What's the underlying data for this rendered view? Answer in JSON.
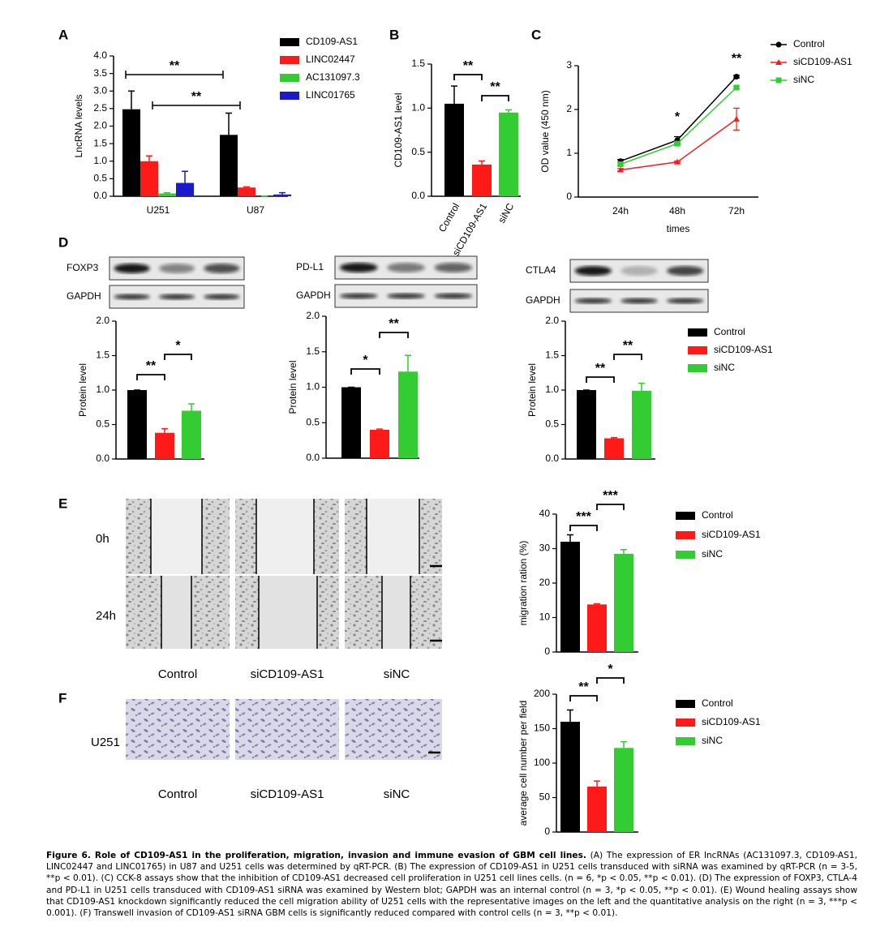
{
  "panels": [
    "A",
    "B",
    "C",
    "D",
    "E",
    "F"
  ],
  "blots": [
    {
      "target": "FOXP3",
      "reference": "GAPDH"
    },
    {
      "target": "PD-L1",
      "reference": "GAPDH"
    },
    {
      "target": "CTLA4",
      "reference": "GAPDH"
    }
  ],
  "images": {
    "E": {
      "rows": [
        "0h",
        "24h"
      ],
      "columns": [
        "Control",
        "siCD109-AS1",
        "siNC"
      ]
    },
    "F": {
      "rows": [
        "U251"
      ],
      "columns": [
        "Control",
        "siCD109-AS1",
        "siNC"
      ]
    }
  },
  "chart_data": [
    {
      "type": "bar",
      "ylabel": "LncRNA levels",
      "categories": [
        "U251",
        "U87"
      ],
      "series": [
        {
          "name": "CD109-AS1",
          "color": "#000000",
          "values": [
            2.48,
            1.75
          ],
          "errors": [
            0.52,
            0.62
          ]
        },
        {
          "name": "LINC02447",
          "color": "#ff1a1a",
          "values": [
            1.0,
            0.25
          ],
          "errors": [
            0.15,
            0.02
          ]
        },
        {
          "name": "AC131097.3",
          "color": "#33cc33",
          "values": [
            0.08,
            0.0
          ],
          "errors": [
            0.02,
            0.0
          ]
        },
        {
          "name": "LINC01765",
          "color": "#1a1acc",
          "values": [
            0.38,
            0.05
          ],
          "errors": [
            0.33,
            0.05
          ]
        }
      ],
      "ylim": [
        0,
        4
      ],
      "yticks": [
        {
          "value": 0,
          "label": "0.0"
        },
        0.5,
        {
          "value": 1,
          "label": "1.0"
        },
        1.5,
        {
          "value": 2,
          "label": "2.0"
        },
        2.5,
        {
          "value": 3,
          "label": "3.0"
        },
        3.5,
        {
          "value": 4,
          "label": "4.0"
        }
      ],
      "annotations": [
        "**",
        "**"
      ]
    },
    {
      "type": "bar",
      "ylabel": "CD109-AS1 level",
      "categories": [
        "Control",
        "siCD109-AS1",
        "siNC"
      ],
      "values": [
        1.05,
        0.36,
        0.95
      ],
      "errors": [
        0.2,
        0.04,
        0.03
      ],
      "colors": [
        "#000000",
        "#ff1a1a",
        "#33cc33"
      ],
      "ylim": [
        0,
        1.5
      ],
      "yticks": [
        {
          "value": 0,
          "label": "0.0"
        },
        0.5,
        {
          "value": 1,
          "label": "1.0"
        },
        1.5
      ],
      "annotations": [
        "**",
        "**"
      ]
    },
    {
      "type": "line",
      "xlabel": "times",
      "ylabel": "OD value (450 nm)",
      "categories": [
        "24h",
        "48h",
        "72h"
      ],
      "series": [
        {
          "name": "Control",
          "color": "#000000",
          "marker": "circle",
          "values": [
            0.82,
            1.3,
            2.75
          ],
          "errors": [
            0.04,
            0.08,
            0.03
          ]
        },
        {
          "name": "siCD109-AS1",
          "color": "#ff1a1a",
          "marker": "triangle",
          "values": [
            0.62,
            0.8,
            1.78
          ],
          "errors": [
            0.03,
            0.02,
            0.25
          ]
        },
        {
          "name": "siNC",
          "color": "#33cc33",
          "marker": "square",
          "values": [
            0.75,
            1.22,
            2.5
          ],
          "errors": [
            0.03,
            0.04,
            0.03
          ]
        }
      ],
      "ylim": [
        0,
        3
      ],
      "yticks": [
        0,
        1,
        2,
        3
      ],
      "annotations": [
        "*",
        "**"
      ]
    },
    {
      "type": "bar",
      "ylabel": "Protein level",
      "values": [
        1.0,
        0.38,
        0.7
      ],
      "errors": [
        0.0,
        0.06,
        0.1
      ],
      "colors": [
        "#000000",
        "#ff1a1a",
        "#33cc33"
      ],
      "ylim": [
        0,
        2
      ],
      "yticks": [
        {
          "value": 0,
          "label": "0.0"
        },
        0.5,
        {
          "value": 1,
          "label": "1.0"
        },
        1.5,
        {
          "value": 2,
          "label": "2.0"
        }
      ],
      "annotations": [
        "**",
        "*"
      ]
    },
    {
      "type": "bar",
      "ylabel": "Protein level",
      "values": [
        1.0,
        0.4,
        1.22
      ],
      "errors": [
        0.0,
        0.01,
        0.23
      ],
      "colors": [
        "#000000",
        "#ff1a1a",
        "#33cc33"
      ],
      "ylim": [
        0,
        2
      ],
      "yticks": [
        {
          "value": 0,
          "label": "0.0"
        },
        0.5,
        {
          "value": 1,
          "label": "1.0"
        },
        1.5,
        {
          "value": 2,
          "label": "2.0"
        }
      ],
      "annotations": [
        "*",
        "**"
      ]
    },
    {
      "type": "bar",
      "ylabel": "Protein level",
      "values": [
        1.0,
        0.3,
        0.99
      ],
      "errors": [
        0.0,
        0.01,
        0.11
      ],
      "colors": [
        "#000000",
        "#ff1a1a",
        "#33cc33"
      ],
      "legend": [
        "Control",
        "siCD109-AS1",
        "siNC"
      ],
      "ylim": [
        0,
        2
      ],
      "yticks": [
        {
          "value": 0,
          "label": "0.0"
        },
        0.5,
        {
          "value": 1,
          "label": "1.0"
        },
        1.5,
        {
          "value": 2,
          "label": "2.0"
        }
      ],
      "annotations": [
        "**",
        "**"
      ]
    },
    {
      "type": "bar",
      "ylabel": "migration ration (%)",
      "values": [
        32,
        13.8,
        28.5
      ],
      "errors": [
        2,
        0.2,
        1.2
      ],
      "colors": [
        "#000000",
        "#ff1a1a",
        "#33cc33"
      ],
      "legend": [
        "Control",
        "siCD109-AS1",
        "siNC"
      ],
      "ylim": [
        0,
        40
      ],
      "yticks": [
        0,
        10,
        20,
        30,
        40
      ],
      "annotations": [
        "***",
        "***"
      ]
    },
    {
      "type": "bar",
      "ylabel": "average cell number per field",
      "values": [
        160,
        66,
        122
      ],
      "errors": [
        17,
        8,
        9
      ],
      "colors": [
        "#000000",
        "#ff1a1a",
        "#33cc33"
      ],
      "legend": [
        "Control",
        "siCD109-AS1",
        "siNC"
      ],
      "ylim": [
        0,
        200
      ],
      "yticks": [
        0,
        50,
        100,
        150,
        200
      ],
      "annotations": [
        "**",
        "*"
      ]
    }
  ],
  "caption": {
    "title": "Figure 6. Role of CD109-AS1 in the proliferation, migration, invasion and immune evasion of GBM cell lines.",
    "text": "(A) The expression of ER lncRNAs (AC131097.3, CD109-AS1, LINC02447 and LINC01765) in U87 and U251 cells was determined by qRT-PCR. (B) The expression of CD109-AS1 in U251 cells transduced with siRNA was examined by qRT-PCR (n = 3-5, **p < 0.01). (C) CCK-8 assays show that the inhibition of CD109-AS1 decreased cell proliferation in U251 cell lines cells. (n = 6, *p < 0.05, **p < 0.01). (D) The expression of FOXP3, CTLA-4 and PD-L1 in U251 cells transduced with CD109-AS1 siRNA was examined by Western blot; GAPDH was an internal control (n = 3, *p < 0.05, **p < 0.01). (E) Wound healing assays show that CD109-AS1 knockdown significantly reduced the cell migration ability of U251 cells with the representative images on the left and the quantitative analysis on the right (n = 3, ***p < 0.001). (F) Transwell invasion of CD109-AS1 siRNA GBM cells is significantly reduced compared with control cells (n = 3, **p < 0.01)."
  }
}
